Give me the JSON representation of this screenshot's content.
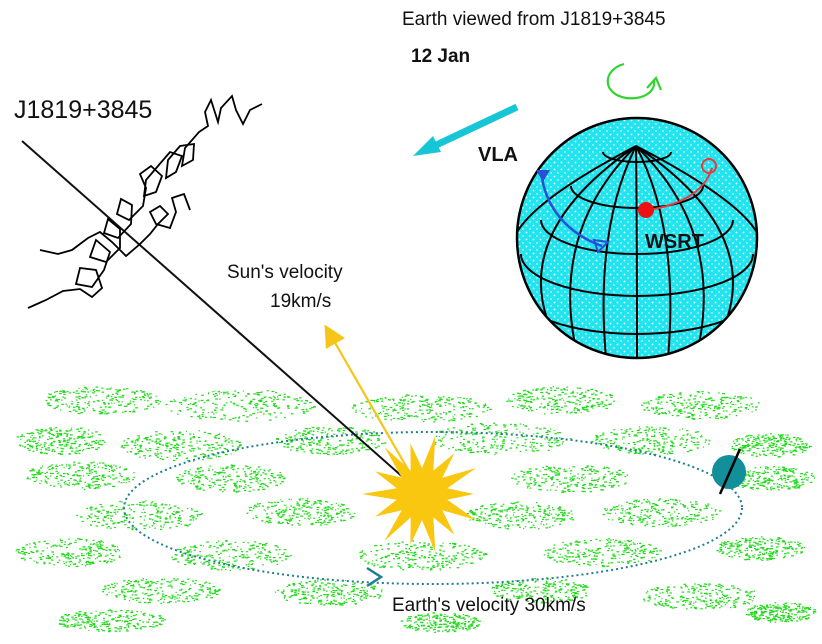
{
  "labels": {
    "view_title": "Earth viewed from J1819+3845",
    "date": "12 Jan",
    "source": "J1819+3845",
    "sun_velocity_line1": "Sun's velocity",
    "sun_velocity_line2": "19km/s",
    "vla": "VLA",
    "wsrt": "WSRT",
    "earth_velocity": "Earth's velocity 30km/s"
  },
  "colors": {
    "globe_fill": "#22e4ee",
    "globe_grid": "#000000",
    "scatter_screen": "#22d91c",
    "orbit": "#1f7f8f",
    "sun": "#f9c70f",
    "sun_velocity_arrow": "#f5c518",
    "motion_arrow": "#16c6d6",
    "rotation_arrow": "#2fd42f",
    "vla_track": "#2a4fd6",
    "wsrt_track": "#e83a3a",
    "earth_small": "#138f9a"
  },
  "icons": {
    "sun": "sun-icon",
    "earth_globe": "earth-globe-icon",
    "rotation": "rotation-arrow-icon"
  }
}
